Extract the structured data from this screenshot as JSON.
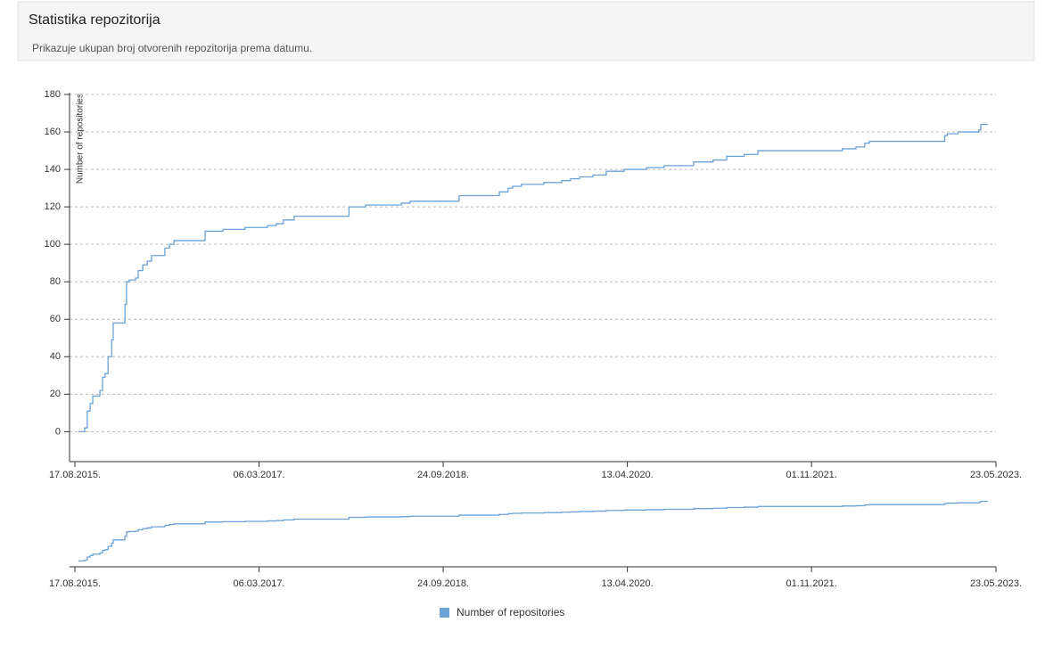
{
  "header": {
    "title": "Statistika repozitorija",
    "subtitle": "Prikazuje ukupan broj otvorenih repozitorija prema datumu."
  },
  "chart_data": {
    "type": "step-line",
    "y_label": "Number of repositories",
    "x": [
      "2015-08-28",
      "2015-09-16",
      "2015-09-24",
      "2015-10-03",
      "2015-10-11",
      "2015-11-02",
      "2015-11-10",
      "2015-11-18",
      "2015-11-27",
      "2015-12-08",
      "2015-12-13",
      "2016-01-18",
      "2016-01-23",
      "2016-01-31",
      "2016-02-20",
      "2016-02-28",
      "2016-03-13",
      "2016-03-27",
      "2016-04-09",
      "2016-05-20",
      "2016-06-03",
      "2016-06-17",
      "2016-09-21",
      "2016-11-15",
      "2017-01-22",
      "2017-04-01",
      "2017-04-28",
      "2017-05-20",
      "2017-06-22",
      "2017-12-08",
      "2018-01-28",
      "2018-05-18",
      "2018-06-14",
      "2018-11-12",
      "2019-03-16",
      "2019-04-12",
      "2019-04-26",
      "2019-05-23",
      "2019-07-31",
      "2019-09-24",
      "2019-10-21",
      "2019-11-18",
      "2019-12-29",
      "2020-02-08",
      "2020-04-03",
      "2020-06-11",
      "2020-08-04",
      "2020-11-03",
      "2021-01-02",
      "2021-02-13",
      "2021-04-08",
      "2021-05-20",
      "2022-02-04",
      "2022-03-18",
      "2022-04-14",
      "2022-04-28",
      "2022-12-16",
      "2022-12-24",
      "2023-01-26",
      "2023-03-31",
      "2023-04-06",
      "2023-04-28"
    ],
    "series": [
      {
        "name": "Number of repositories",
        "color": "#6ba3d8",
        "values": [
          0,
          2,
          11,
          15,
          19,
          22,
          29,
          31,
          40,
          49,
          58,
          68,
          80,
          81,
          82,
          86,
          89,
          91,
          94,
          98,
          100,
          102,
          107,
          108,
          109,
          110,
          111,
          113,
          115,
          120,
          121,
          122,
          123,
          126,
          128,
          130,
          131,
          132,
          133,
          134,
          135,
          136,
          137,
          139,
          140,
          141,
          142,
          144,
          145,
          147,
          148,
          150,
          151,
          152,
          154,
          155,
          158,
          159,
          160,
          161,
          164,
          164
        ]
      }
    ],
    "xlim": [
      "2015-08-17",
      "2023-05-23"
    ],
    "xticks": [
      {
        "value": "2015-08-17",
        "label": "17.08.2015."
      },
      {
        "value": "2017-03-06",
        "label": "06.03.2017."
      },
      {
        "value": "2018-09-24",
        "label": "24.09.2018."
      },
      {
        "value": "2020-04-13",
        "label": "13.04.2020."
      },
      {
        "value": "2021-11-01",
        "label": "01.11.2021."
      },
      {
        "value": "2023-05-23",
        "label": "23.05.2023."
      }
    ],
    "ylim": [
      -16,
      180
    ],
    "yticks": [
      0,
      20,
      40,
      60,
      80,
      100,
      120,
      140,
      160,
      180
    ],
    "grid": true
  }
}
